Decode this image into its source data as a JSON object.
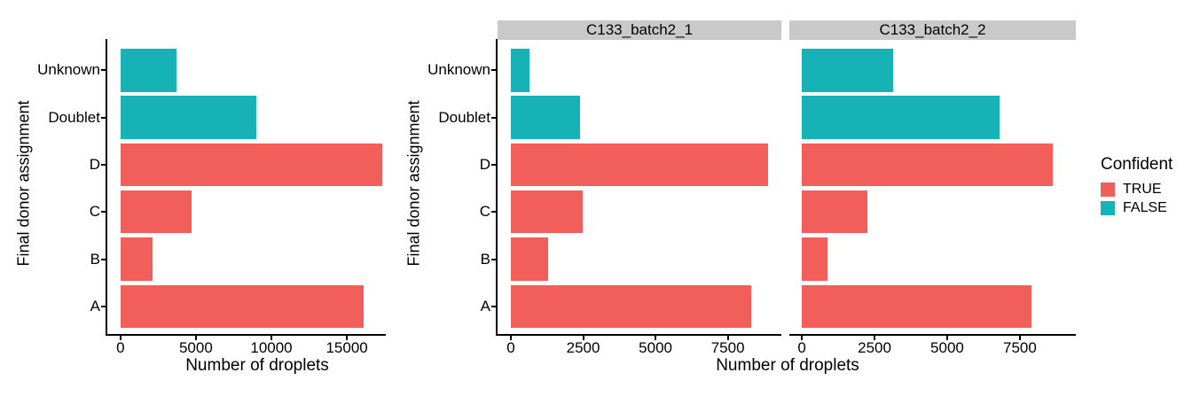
{
  "colors": {
    "confident_true": "#F25E5A",
    "confident_false": "#17B2B6",
    "strip_background": "#C9C9C9",
    "axis_line": "#000000",
    "text": "#000000"
  },
  "legend": {
    "title": "Confident",
    "items": [
      {
        "label": "TRUE",
        "color": "#F25E5A"
      },
      {
        "label": "FALSE",
        "color": "#17B2B6"
      }
    ]
  },
  "chart_data": [
    {
      "id": "overall",
      "type": "bar",
      "orientation": "horizontal",
      "xlabel": "Number of droplets",
      "ylabel": "Final donor assignment",
      "categories_top_to_bottom": [
        "Unknown",
        "Doublet",
        "D",
        "C",
        "B",
        "A"
      ],
      "x_ticks": [
        0,
        5000,
        10000,
        15000
      ],
      "legend_title": "Confident",
      "panels": [
        {
          "facet_label": "",
          "xlim_display": [
            -870,
            17550
          ],
          "bars": [
            {
              "category": "Unknown",
              "value": 3740,
              "confident": "FALSE"
            },
            {
              "category": "Doublet",
              "value": 9030,
              "confident": "FALSE"
            },
            {
              "category": "D",
              "value": 17350,
              "confident": "TRUE"
            },
            {
              "category": "C",
              "value": 4700,
              "confident": "TRUE"
            },
            {
              "category": "B",
              "value": 2120,
              "confident": "TRUE"
            },
            {
              "category": "A",
              "value": 16090,
              "confident": "TRUE"
            }
          ]
        }
      ]
    },
    {
      "id": "by-sample",
      "type": "bar",
      "orientation": "horizontal",
      "xlabel": "Number of droplets",
      "ylabel": "Final donor assignment",
      "categories_top_to_bottom": [
        "Unknown",
        "Doublet",
        "D",
        "C",
        "B",
        "A"
      ],
      "x_ticks": [
        0,
        2500,
        5000,
        7500
      ],
      "legend_title": "Confident",
      "panels": [
        {
          "facet_label": "C133_batch2_1",
          "xlim_display": [
            -460,
            9350
          ],
          "bars": [
            {
              "category": "Unknown",
              "value": 650,
              "confident": "FALSE"
            },
            {
              "category": "Doublet",
              "value": 2390,
              "confident": "FALSE"
            },
            {
              "category": "D",
              "value": 8900,
              "confident": "TRUE"
            },
            {
              "category": "C",
              "value": 2490,
              "confident": "TRUE"
            },
            {
              "category": "B",
              "value": 1280,
              "confident": "TRUE"
            },
            {
              "category": "A",
              "value": 8310,
              "confident": "TRUE"
            }
          ]
        },
        {
          "facet_label": "C133_batch2_2",
          "xlim_display": [
            -430,
            9425
          ],
          "bars": [
            {
              "category": "Unknown",
              "value": 3140,
              "confident": "FALSE"
            },
            {
              "category": "Doublet",
              "value": 6800,
              "confident": "FALSE"
            },
            {
              "category": "D",
              "value": 8620,
              "confident": "TRUE"
            },
            {
              "category": "C",
              "value": 2260,
              "confident": "TRUE"
            },
            {
              "category": "B",
              "value": 870,
              "confident": "TRUE"
            },
            {
              "category": "A",
              "value": 7900,
              "confident": "TRUE"
            }
          ]
        }
      ]
    }
  ]
}
